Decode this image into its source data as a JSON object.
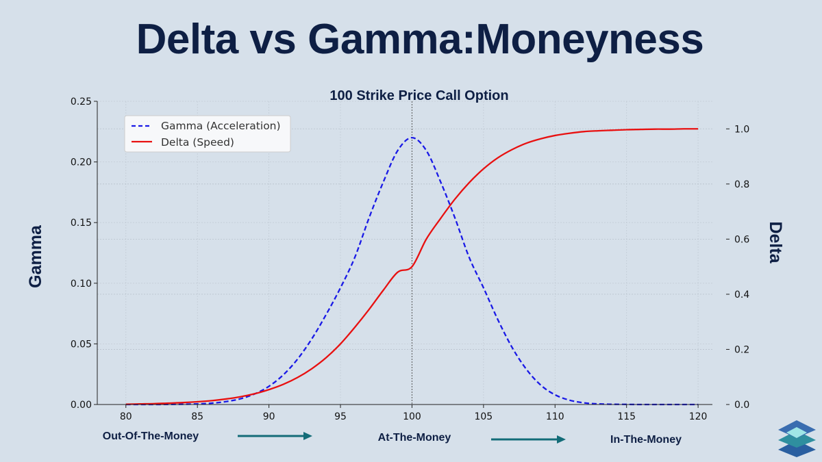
{
  "title": "Delta vs Gamma:Moneyness",
  "chart_data": {
    "type": "line",
    "title": "100 Strike Price Call Option",
    "xlabel": "",
    "ylabel_left": "Gamma",
    "ylabel_right": "Delta",
    "xlim": [
      78,
      121
    ],
    "ylim_left": [
      0,
      0.25
    ],
    "ylim_right": [
      0,
      1.1
    ],
    "x_ticks": [
      80,
      85,
      90,
      95,
      100,
      105,
      110,
      115,
      120
    ],
    "y_left_ticks": [
      0.0,
      0.05,
      0.1,
      0.15,
      0.2,
      0.25
    ],
    "y_left_tick_labels": [
      "0.00",
      "0.05",
      "0.10",
      "0.15",
      "0.20",
      "0.25"
    ],
    "y_right_ticks": [
      0.0,
      0.2,
      0.4,
      0.6,
      0.8,
      1.0
    ],
    "y_right_tick_labels": [
      "0.0",
      "0.2",
      "0.4",
      "0.6",
      "0.8",
      "1.0"
    ],
    "strike_line_x": 100,
    "grid": true,
    "legend_position": "upper-left",
    "series": [
      {
        "name": "Gamma (Acceleration)",
        "axis": "left",
        "color": "#1a1ae6",
        "style": "dashed",
        "x": [
          80,
          81,
          82,
          83,
          84,
          85,
          86,
          87,
          88,
          89,
          90,
          91,
          92,
          93,
          94,
          95,
          96,
          97,
          98,
          99,
          100,
          101,
          102,
          103,
          104,
          105,
          106,
          107,
          108,
          109,
          110,
          111,
          112,
          113,
          114,
          115,
          116,
          117,
          118,
          119,
          120
        ],
        "values": [
          0.0,
          0.0,
          0.0,
          0.0001,
          0.0002,
          0.0005,
          0.0011,
          0.0024,
          0.0047,
          0.0087,
          0.015,
          0.0244,
          0.0374,
          0.0542,
          0.0742,
          0.0962,
          0.1212,
          0.1539,
          0.1836,
          0.2094,
          0.22,
          0.2094,
          0.1836,
          0.1539,
          0.1212,
          0.0962,
          0.07,
          0.047,
          0.029,
          0.016,
          0.008,
          0.0036,
          0.0014,
          0.0005,
          0.0002,
          0.0001,
          0.0,
          0.0,
          0.0,
          0.0,
          0.0
        ]
      },
      {
        "name": "Delta (Speed)",
        "axis": "right",
        "color": "#e81010",
        "style": "solid",
        "x": [
          80,
          81,
          82,
          83,
          84,
          85,
          86,
          87,
          88,
          89,
          90,
          91,
          92,
          93,
          94,
          95,
          96,
          97,
          98,
          99,
          100,
          101,
          102,
          103,
          104,
          105,
          106,
          107,
          108,
          109,
          110,
          111,
          112,
          113,
          114,
          115,
          116,
          117,
          118,
          119,
          120
        ],
        "values": [
          0.001,
          0.002,
          0.003,
          0.005,
          0.007,
          0.01,
          0.014,
          0.02,
          0.028,
          0.039,
          0.054,
          0.073,
          0.098,
          0.13,
          0.17,
          0.22,
          0.28,
          0.345,
          0.415,
          0.48,
          0.5,
          0.6,
          0.675,
          0.745,
          0.805,
          0.855,
          0.895,
          0.925,
          0.948,
          0.964,
          0.976,
          0.984,
          0.99,
          0.993,
          0.995,
          0.997,
          0.998,
          0.999,
          0.999,
          1.0,
          1.0
        ]
      }
    ],
    "annotations": [
      "Out-Of-The-Money",
      "At-The-Money",
      "In-The-Money"
    ]
  },
  "colors": {
    "background": "#d6e0ea",
    "title": "#0e1f44",
    "arrow": "#136c78"
  },
  "logo_icon": "stacked-layers-logo-icon"
}
